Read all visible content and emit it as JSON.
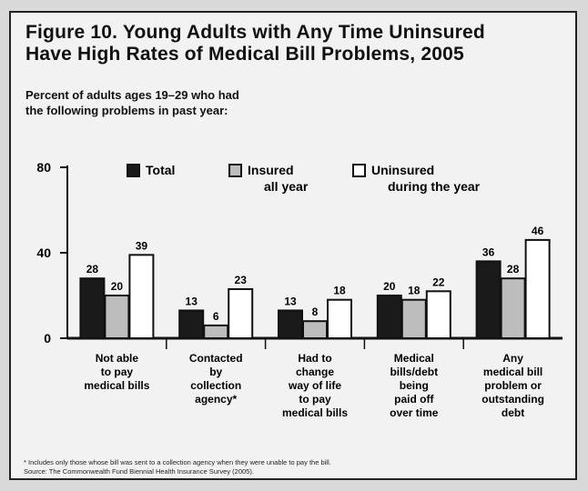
{
  "figure": {
    "title_line1": "Figure 10. Young Adults with Any Time Uninsured",
    "title_line2": "Have High Rates of Medical Bill Problems, 2005",
    "subtitle_line1": "Percent of adults ages 19–29 who had",
    "subtitle_line2": "the following problems in past year:",
    "footnote": "* Includes only those whose bill was sent to a collection agency when they were unable to pay the bill.",
    "source": "Source: The Commonwealth Fund Biennial Health Insurance Survey (2005)."
  },
  "chart_data": {
    "type": "bar",
    "categories": [
      [
        "Not able",
        "to pay",
        "medical bills"
      ],
      [
        "Contacted",
        "by",
        "collection",
        "agency*"
      ],
      [
        "Had to",
        "change",
        "way of life",
        "to pay",
        "medical bills"
      ],
      [
        "Medical",
        "bills/debt",
        "being",
        "paid off",
        "over time"
      ],
      [
        "Any",
        "medical bill",
        "problem or",
        "outstanding",
        "debt"
      ]
    ],
    "series": [
      {
        "name": "Total",
        "values": [
          28,
          13,
          13,
          20,
          36
        ],
        "color": "#1a1a1a"
      },
      {
        "name": "Insured all year",
        "values": [
          20,
          6,
          8,
          18,
          28
        ],
        "color": "#bdbdbd"
      },
      {
        "name": "Uninsured during the year",
        "values": [
          39,
          23,
          18,
          22,
          46
        ],
        "color": "#ffffff"
      }
    ],
    "data_labels": [
      [
        "28",
        "13",
        "13",
        "20",
        "36"
      ],
      [
        "20",
        "6",
        "8",
        "18",
        "28"
      ],
      [
        "39",
        "23",
        "18",
        "22",
        "46"
      ]
    ],
    "legend": [
      {
        "line1": "Total",
        "line2": ""
      },
      {
        "line1": "Insured",
        "line2": "all year"
      },
      {
        "line1": "Uninsured",
        "line2": "during the year"
      }
    ],
    "yticks": [
      "0",
      "40",
      "80"
    ],
    "ytick_values": [
      0,
      40,
      80
    ],
    "ylim": [
      0,
      80
    ],
    "legend_position": "top"
  }
}
